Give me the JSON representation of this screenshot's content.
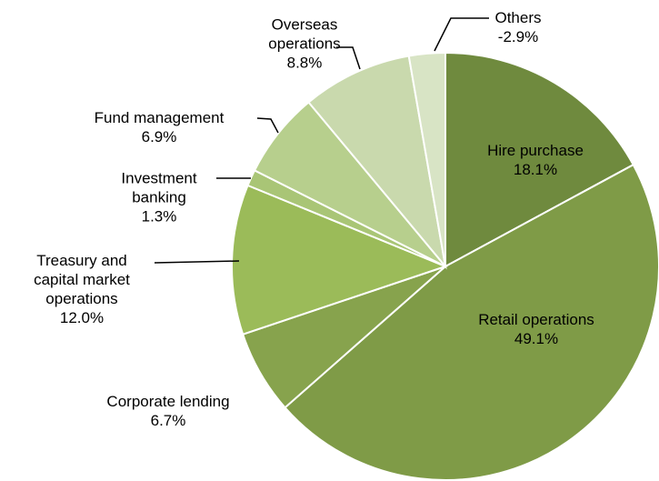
{
  "chart_data": {
    "type": "pie",
    "categories": [
      "Hire purchase",
      "Retail operations",
      "Corporate lending",
      "Treasury and capital market operations",
      "Investment banking",
      "Fund management",
      "Overseas operations",
      "Others"
    ],
    "values": [
      18.1,
      49.1,
      6.7,
      12.0,
      1.3,
      6.9,
      8.8,
      -2.9
    ],
    "value_labels": [
      "18.1%",
      "49.1%",
      "6.7%",
      "12.0%",
      "1.3%",
      "6.9%",
      "8.8%",
      "-2.9%"
    ],
    "colors": [
      "#6f8a3e",
      "#7f9b47",
      "#87a34d",
      "#9bbb59",
      "#a9c576",
      "#b7cf8d",
      "#c9d9ad",
      "#d8e4c5"
    ]
  }
}
